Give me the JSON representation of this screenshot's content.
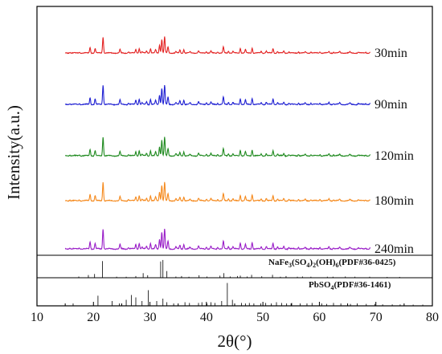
{
  "chart_data": {
    "type": "line",
    "xlabel": "2θ(°)",
    "ylabel": "Intensity(a.u.)",
    "xlim": [
      10,
      80
    ],
    "x_ticks": [
      "10",
      "20",
      "30",
      "40",
      "50",
      "60",
      "70",
      "80"
    ],
    "grid": false,
    "series": [
      {
        "name": "30min",
        "color": "#e32222"
      },
      {
        "name": "90min",
        "color": "#1f20d2"
      },
      {
        "name": "120min",
        "color": "#1f8a1f"
      },
      {
        "name": "180min",
        "color": "#f58a1e"
      },
      {
        "name": "240min",
        "color": "#9a1fc8"
      }
    ],
    "peaks": [
      [
        15.8,
        0.05
      ],
      [
        17.5,
        0.05
      ],
      [
        19.4,
        0.35
      ],
      [
        20.3,
        0.28
      ],
      [
        21.7,
        1.0
      ],
      [
        24.7,
        0.22
      ],
      [
        26.2,
        0.07
      ],
      [
        27.5,
        0.22
      ],
      [
        28.1,
        0.28
      ],
      [
        28.6,
        0.08
      ],
      [
        29.4,
        0.14
      ],
      [
        30.1,
        0.28
      ],
      [
        31.0,
        0.2
      ],
      [
        31.7,
        0.5
      ],
      [
        32.1,
        0.85
      ],
      [
        32.6,
        1.0
      ],
      [
        33.2,
        0.38
      ],
      [
        34.6,
        0.1
      ],
      [
        35.3,
        0.18
      ],
      [
        36.0,
        0.22
      ],
      [
        37.1,
        0.07
      ],
      [
        38.6,
        0.14
      ],
      [
        40.0,
        0.1
      ],
      [
        40.8,
        0.12
      ],
      [
        42.0,
        0.08
      ],
      [
        43.0,
        0.38
      ],
      [
        43.9,
        0.12
      ],
      [
        44.7,
        0.1
      ],
      [
        46.0,
        0.3
      ],
      [
        46.9,
        0.22
      ],
      [
        48.1,
        0.32
      ],
      [
        49.7,
        0.1
      ],
      [
        50.6,
        0.12
      ],
      [
        51.8,
        0.28
      ],
      [
        52.6,
        0.1
      ],
      [
        53.7,
        0.12
      ],
      [
        54.6,
        0.07
      ],
      [
        56.3,
        0.08
      ],
      [
        57.5,
        0.07
      ],
      [
        58.5,
        0.07
      ],
      [
        60.1,
        0.08
      ],
      [
        61.7,
        0.1
      ],
      [
        62.5,
        0.06
      ],
      [
        63.6,
        0.08
      ],
      [
        65.4,
        0.06
      ],
      [
        66.9,
        0.05
      ],
      [
        68.2,
        0.05
      ],
      [
        69.0,
        0.05
      ]
    ],
    "references": [
      {
        "label": "NaFe3(SO4)2(OH)6(PDF#36-0425)",
        "sticks": [
          [
            17.4,
            0.06
          ],
          [
            19.1,
            0.13
          ],
          [
            20.2,
            0.18
          ],
          [
            21.6,
            0.8
          ],
          [
            24.1,
            0.05
          ],
          [
            25.8,
            0.05
          ],
          [
            27.5,
            0.08
          ],
          [
            28.8,
            0.22
          ],
          [
            29.6,
            0.12
          ],
          [
            31.9,
            0.78
          ],
          [
            32.3,
            0.85
          ],
          [
            33.0,
            0.32
          ],
          [
            34.6,
            0.06
          ],
          [
            35.6,
            0.08
          ],
          [
            36.9,
            0.05
          ],
          [
            38.7,
            0.12
          ],
          [
            40.1,
            0.06
          ],
          [
            42.4,
            0.1
          ],
          [
            43.1,
            0.22
          ],
          [
            44.2,
            0.06
          ],
          [
            45.5,
            0.08
          ],
          [
            46.0,
            0.1
          ],
          [
            47.2,
            0.06
          ],
          [
            48.0,
            0.14
          ],
          [
            49.8,
            0.07
          ],
          [
            51.7,
            0.14
          ],
          [
            53.1,
            0.05
          ],
          [
            54.1,
            0.08
          ],
          [
            56.1,
            0.05
          ],
          [
            57.0,
            0.06
          ],
          [
            58.5,
            0.05
          ],
          [
            61.4,
            0.05
          ],
          [
            62.4,
            0.05
          ],
          [
            64.6,
            0.06
          ],
          [
            66.3,
            0.05
          ],
          [
            68.9,
            0.05
          ],
          [
            72.0,
            0.04
          ],
          [
            74.2,
            0.04
          ]
        ]
      },
      {
        "label": "PbSO4(PDF#36-1461)",
        "sticks": [
          [
            16.4,
            0.1
          ],
          [
            20.8,
            0.42
          ],
          [
            23.3,
            0.2
          ],
          [
            24.6,
            0.1
          ],
          [
            25.8,
            0.25
          ],
          [
            26.7,
            0.45
          ],
          [
            27.5,
            0.35
          ],
          [
            28.6,
            0.2
          ],
          [
            29.7,
            0.65
          ],
          [
            31.2,
            0.2
          ],
          [
            32.3,
            0.3
          ],
          [
            33.0,
            0.15
          ],
          [
            34.2,
            0.1
          ],
          [
            36.2,
            0.15
          ],
          [
            37.0,
            0.12
          ],
          [
            38.6,
            0.12
          ],
          [
            39.2,
            0.15
          ],
          [
            40.1,
            0.1
          ],
          [
            40.8,
            0.15
          ],
          [
            41.5,
            0.12
          ],
          [
            42.7,
            0.2
          ],
          [
            43.7,
            0.95
          ],
          [
            44.6,
            0.25
          ],
          [
            46.2,
            0.12
          ],
          [
            46.9,
            0.1
          ],
          [
            47.6,
            0.12
          ],
          [
            48.4,
            0.1
          ],
          [
            49.6,
            0.1
          ],
          [
            50.5,
            0.12
          ],
          [
            51.5,
            0.1
          ],
          [
            52.4,
            0.15
          ],
          [
            53.3,
            0.12
          ],
          [
            54.2,
            0.1
          ],
          [
            55.1,
            0.12
          ],
          [
            56.6,
            0.1
          ],
          [
            57.8,
            0.1
          ],
          [
            58.7,
            0.12
          ],
          [
            60.4,
            0.1
          ],
          [
            61.3,
            0.08
          ],
          [
            62.5,
            0.12
          ],
          [
            63.8,
            0.1
          ],
          [
            65.5,
            0.08
          ],
          [
            66.7,
            0.1
          ],
          [
            68.3,
            0.08
          ],
          [
            69.8,
            0.08
          ],
          [
            71.2,
            0.06
          ],
          [
            72.9,
            0.06
          ],
          [
            74.3,
            0.06
          ],
          [
            76.6,
            0.05
          ],
          [
            78.3,
            0.05
          ]
        ]
      }
    ]
  },
  "text": {
    "ref1_main": "NaFe",
    "ref1_s1": "3",
    "ref1_mid1": "(SO",
    "ref1_s2": "4",
    "ref1_mid2": ")",
    "ref1_s3": "2",
    "ref1_mid3": "(OH)",
    "ref1_s4": "6",
    "ref1_tail": "(PDF#36-0425)",
    "ref2_main": "PbSO",
    "ref2_s1": "4",
    "ref2_tail": "(PDF#36-1461)"
  }
}
